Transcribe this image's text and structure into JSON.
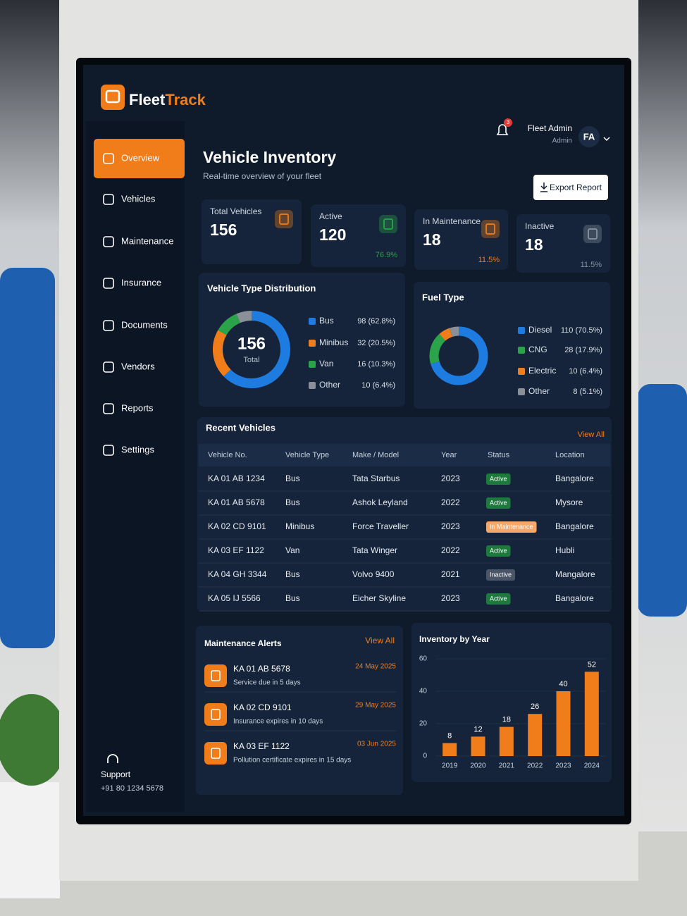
{
  "brand": {
    "name_first": "Fleet",
    "name_second": "Track"
  },
  "header": {
    "notification_count": 3,
    "user_name": "Fleet Admin",
    "user_role": "Admin",
    "avatar_initials": "FA"
  },
  "nav": [
    "Overview",
    "Vehicles",
    "Maintenance",
    "Insurance",
    "Documents",
    "Vendors",
    "Reports",
    "Settings"
  ],
  "support": {
    "label": "Support",
    "phone": "+91 80 1234 5678"
  },
  "page": {
    "title": "Vehicle Inventory",
    "subtitle": "Real-time overview of your fleet",
    "export_button": "Export Report"
  },
  "stats": [
    {
      "label": "Total Vehicles",
      "value": 156,
      "color": "#f07d1a"
    },
    {
      "label": "Active",
      "value": 120,
      "share": "76.9%",
      "color": "#2aa34a"
    },
    {
      "label": "In Maintenance",
      "value": 18,
      "share": "11.5%",
      "color": "#f07d1a"
    },
    {
      "label": "Inactive",
      "value": 18,
      "share": "11.5%",
      "color": "#8a93a3"
    }
  ],
  "recent_vehicles": {
    "title": "Recent Vehicles",
    "view_all": "View All",
    "columns": [
      "Vehicle No.",
      "Vehicle Type",
      "Make / Model",
      "Year",
      "Status",
      "Location"
    ],
    "rows": [
      [
        "KA 01 AB 1234",
        "Bus",
        "Tata Starbus",
        "2023",
        "Active",
        "Bangalore"
      ],
      [
        "KA 01 AB 5678",
        "Bus",
        "Ashok Leyland",
        "2022",
        "Active",
        "Mysore"
      ],
      [
        "KA 02 CD 9101",
        "Minibus",
        "Force Traveller",
        "2023",
        "In Maintenance",
        "Bangalore"
      ],
      [
        "KA 03 EF 1122",
        "Van",
        "Tata Winger",
        "2022",
        "Active",
        "Hubli"
      ],
      [
        "KA 04 GH 3344",
        "Bus",
        "Volvo 9400",
        "2021",
        "Inactive",
        "Mangalore"
      ],
      [
        "KA 05 IJ 5566",
        "Bus",
        "Eicher Skyline",
        "2023",
        "Active",
        "Bangalore"
      ]
    ],
    "status_colors": {
      "Active": "#1d7a3c",
      "In Maintenance": "#f6a86a",
      "Inactive": "#4a5668"
    }
  },
  "maintenance_alerts": {
    "title": "Maintenance Alerts",
    "view_all": "View All",
    "items": [
      {
        "vehicle": "KA 01 AB 5678",
        "detail": "Service due in 5 days",
        "date": "24 May 2025"
      },
      {
        "vehicle": "KA 02 CD 9101",
        "detail": "Insurance expires in 10 days",
        "date": "29 May 2025"
      },
      {
        "vehicle": "KA 03 EF 1122",
        "detail": "Pollution certificate expires in 15 days",
        "date": "03 Jun 2025"
      }
    ]
  },
  "chart_data": [
    {
      "type": "donut",
      "title": "Vehicle Type Distribution",
      "center_value": 156,
      "center_label": "Total",
      "categories": [
        "Bus",
        "Minibus",
        "Van",
        "Other"
      ],
      "values": [
        98,
        32,
        16,
        10
      ],
      "value_labels": [
        "98 (62.8%)",
        "32 (20.5%)",
        "16 (10.3%)",
        "10 (6.4%)"
      ],
      "colors": [
        "#1e7be0",
        "#f07d1a",
        "#2aa34a",
        "#8a8f98"
      ]
    },
    {
      "type": "donut",
      "title": "Fuel Type",
      "categories": [
        "Diesel",
        "CNG",
        "Electric",
        "Other"
      ],
      "values": [
        110,
        28,
        10,
        8
      ],
      "value_labels": [
        "110 (70.5%)",
        "28 (17.9%)",
        "10 (6.4%)",
        "8 (5.1%)"
      ],
      "colors": [
        "#1e7be0",
        "#2aa34a",
        "#f07d1a",
        "#8a8f98"
      ]
    },
    {
      "type": "bar",
      "title": "Inventory by Year",
      "categories": [
        "2019",
        "2020",
        "2021",
        "2022",
        "2023",
        "2024"
      ],
      "values": [
        8,
        12,
        18,
        26,
        40,
        52
      ],
      "color": "#f07d1a",
      "ylim": [
        0,
        60
      ],
      "yticks": [
        0,
        20,
        40,
        60
      ]
    }
  ]
}
